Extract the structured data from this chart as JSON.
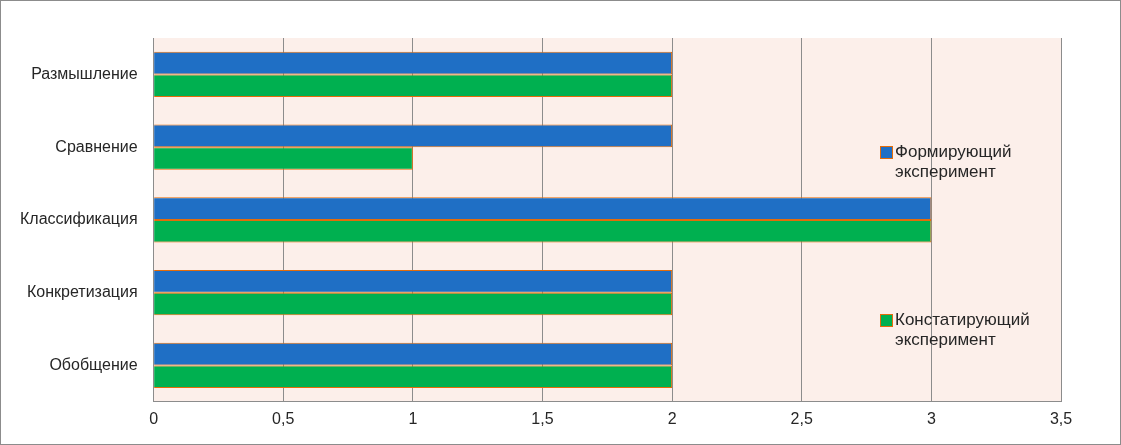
{
  "chart_data": {
    "type": "bar",
    "orientation": "horizontal",
    "categories": [
      "Размышление",
      "Сравнение",
      "Классификация",
      "Конкретизация",
      "Обобщение"
    ],
    "series": [
      {
        "name": "Формирующий эксперимент",
        "color": "#1f6fc5",
        "values": [
          2,
          2,
          3,
          2,
          2
        ]
      },
      {
        "name": "Констатирующий эксперимент",
        "color": "#00b050",
        "values": [
          2,
          1,
          3,
          2,
          2
        ]
      }
    ],
    "xlim": [
      0,
      3.5
    ],
    "xticks": [
      0,
      {
        "value": 0.5,
        "label": "0,5"
      },
      1,
      {
        "value": 1.5,
        "label": "1,5"
      },
      2,
      {
        "value": 2.5,
        "label": "2,5"
      },
      3,
      {
        "value": 3.5,
        "label": "3,5"
      }
    ],
    "grid": "x",
    "legend": "right"
  }
}
